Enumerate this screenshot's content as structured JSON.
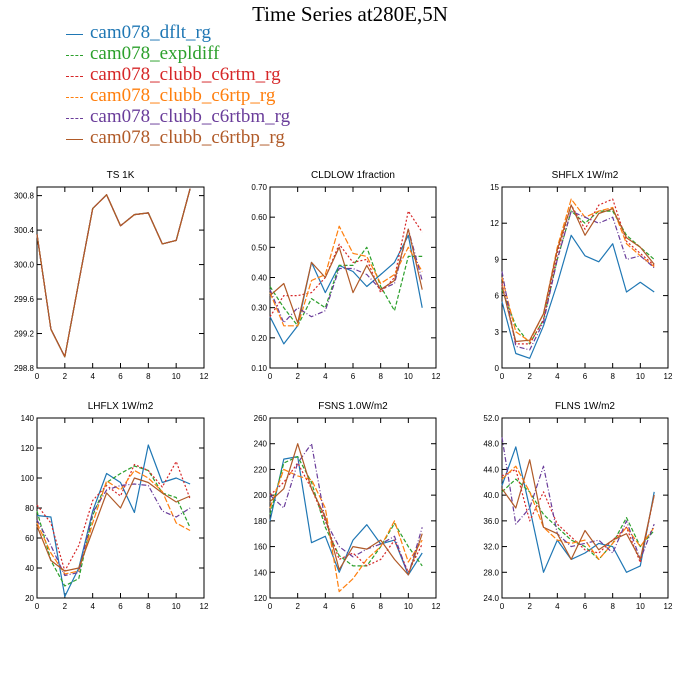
{
  "figure_title": "Time Series at280E,5N",
  "series_styles": [
    {
      "name": "cam078_dflt_rg",
      "color": "#1f77b4",
      "dash": ""
    },
    {
      "name": "cam078_expldiff",
      "color": "#2ca02c",
      "dash": "4,2"
    },
    {
      "name": "cam078_clubb_c6rtm_rg",
      "color": "#d62728",
      "dash": "2,2"
    },
    {
      "name": "cam078_clubb_c6rtp_rg",
      "color": "#ff7f0e",
      "dash": "6,2"
    },
    {
      "name": "cam078_clubb_c6rtbm_rg",
      "color": "#6a3d9a",
      "dash": "5,2,1,2"
    },
    {
      "name": "cam078_clubb_c6rtbp_rg",
      "color": "#b05a28",
      "dash": ""
    }
  ],
  "chart_data": [
    {
      "type": "line",
      "title": "TS   1K",
      "xlim": [
        0,
        12
      ],
      "xticks": [
        0,
        2,
        4,
        6,
        8,
        10,
        12
      ],
      "ylim": [
        298.8,
        300.9
      ],
      "yticks": [
        298.8,
        299.2,
        299.6,
        300.0,
        300.4,
        300.8
      ],
      "ytick_labels": [
        "298.8",
        "299.2",
        "299.6",
        "300.0",
        "300.4",
        "300.8"
      ],
      "x": [
        0,
        1,
        2,
        3,
        4,
        5,
        6,
        7,
        8,
        9,
        10,
        11
      ],
      "series": [
        {
          "values": [
            300.35,
            299.25,
            298.93,
            299.8,
            300.65,
            300.81,
            300.45,
            300.58,
            300.6,
            300.24,
            300.28,
            300.88
          ]
        },
        {
          "values": [
            300.35,
            299.25,
            298.93,
            299.8,
            300.65,
            300.81,
            300.45,
            300.58,
            300.6,
            300.24,
            300.28,
            300.88
          ]
        },
        {
          "values": [
            300.35,
            299.25,
            298.93,
            299.8,
            300.65,
            300.81,
            300.45,
            300.58,
            300.6,
            300.24,
            300.28,
            300.88
          ]
        },
        {
          "values": [
            300.35,
            299.25,
            298.93,
            299.8,
            300.65,
            300.81,
            300.45,
            300.58,
            300.6,
            300.24,
            300.28,
            300.88
          ]
        },
        {
          "values": [
            300.35,
            299.25,
            298.93,
            299.8,
            300.65,
            300.81,
            300.45,
            300.58,
            300.6,
            300.24,
            300.28,
            300.88
          ]
        },
        {
          "values": [
            300.35,
            299.25,
            298.93,
            299.8,
            300.65,
            300.81,
            300.45,
            300.58,
            300.6,
            300.24,
            300.28,
            300.88
          ]
        }
      ]
    },
    {
      "type": "line",
      "title": "CLDLOW   1fraction",
      "xlim": [
        0,
        12
      ],
      "xticks": [
        0,
        2,
        4,
        6,
        8,
        10,
        12
      ],
      "ylim": [
        0.1,
        0.7
      ],
      "yticks": [
        0.1,
        0.2,
        0.3,
        0.4,
        0.5,
        0.6,
        0.7
      ],
      "ytick_labels": [
        "0.10",
        "0.20",
        "0.30",
        "0.40",
        "0.50",
        "0.60",
        "0.70"
      ],
      "x": [
        0,
        1,
        2,
        3,
        4,
        5,
        6,
        7,
        8,
        9,
        10,
        11
      ],
      "series": [
        {
          "values": [
            0.27,
            0.18,
            0.24,
            0.45,
            0.35,
            0.44,
            0.42,
            0.37,
            0.41,
            0.45,
            0.54,
            0.3
          ]
        },
        {
          "values": [
            0.37,
            0.3,
            0.24,
            0.33,
            0.3,
            0.44,
            0.44,
            0.5,
            0.37,
            0.29,
            0.47,
            0.47
          ]
        },
        {
          "values": [
            0.27,
            0.34,
            0.34,
            0.35,
            0.4,
            0.51,
            0.45,
            0.46,
            0.35,
            0.4,
            0.62,
            0.55
          ]
        },
        {
          "values": [
            0.35,
            0.24,
            0.24,
            0.39,
            0.41,
            0.57,
            0.48,
            0.47,
            0.38,
            0.41,
            0.5,
            0.42
          ]
        },
        {
          "values": [
            0.36,
            0.25,
            0.3,
            0.27,
            0.29,
            0.43,
            0.43,
            0.41,
            0.36,
            0.38,
            0.56,
            0.39
          ]
        },
        {
          "values": [
            0.34,
            0.38,
            0.25,
            0.45,
            0.4,
            0.5,
            0.35,
            0.44,
            0.36,
            0.39,
            0.56,
            0.36
          ]
        }
      ]
    },
    {
      "type": "line",
      "title": "SHFLX   1W/m2",
      "xlim": [
        0,
        12
      ],
      "xticks": [
        0,
        2,
        4,
        6,
        8,
        10,
        12
      ],
      "ylim": [
        0,
        15
      ],
      "yticks": [
        0,
        3,
        6,
        9,
        12,
        15
      ],
      "ytick_labels": [
        "0",
        "3",
        "6",
        "9",
        "12",
        "15"
      ],
      "x": [
        0,
        1,
        2,
        3,
        4,
        5,
        6,
        7,
        8,
        9,
        10,
        11
      ],
      "series": [
        {
          "values": [
            5.5,
            1.2,
            0.8,
            3.5,
            7.0,
            11.0,
            9.3,
            8.8,
            10.3,
            6.3,
            7.1,
            6.3
          ]
        },
        {
          "values": [
            6.5,
            3.5,
            2.0,
            4.0,
            9.0,
            13.0,
            12.0,
            13.0,
            13.0,
            11.0,
            10.0,
            9.0
          ]
        },
        {
          "values": [
            7.0,
            2.0,
            2.0,
            4.0,
            9.5,
            13.5,
            11.5,
            13.5,
            14.0,
            10.5,
            9.5,
            8.5
          ]
        },
        {
          "values": [
            7.5,
            3.0,
            2.2,
            4.5,
            10.0,
            14.0,
            12.5,
            13.0,
            13.3,
            10.3,
            9.3,
            8.4
          ]
        },
        {
          "values": [
            8.0,
            1.8,
            1.5,
            3.8,
            9.0,
            13.0,
            12.5,
            12.0,
            12.5,
            9.0,
            9.3,
            8.3
          ]
        },
        {
          "values": [
            6.8,
            2.2,
            2.3,
            4.5,
            9.8,
            13.5,
            11.0,
            12.8,
            13.2,
            10.8,
            10.0,
            8.6
          ]
        }
      ]
    },
    {
      "type": "line",
      "title": "LHFLX   1W/m2",
      "xlim": [
        0,
        12
      ],
      "xticks": [
        0,
        2,
        4,
        6,
        8,
        10,
        12
      ],
      "ylim": [
        20,
        140
      ],
      "yticks": [
        20,
        40,
        60,
        80,
        100,
        120,
        140
      ],
      "ytick_labels": [
        "20",
        "40",
        "60",
        "80",
        "100",
        "120",
        "140"
      ],
      "x": [
        0,
        1,
        2,
        3,
        4,
        5,
        6,
        7,
        8,
        9,
        10,
        11
      ],
      "series": [
        {
          "values": [
            75,
            74,
            21,
            40,
            78,
            103,
            97,
            77,
            122,
            97,
            100,
            96
          ]
        },
        {
          "values": [
            78,
            45,
            28,
            33,
            75,
            97,
            103,
            108,
            105,
            90,
            87,
            67
          ]
        },
        {
          "values": [
            82,
            70,
            38,
            55,
            85,
            95,
            88,
            109,
            105,
            94,
            111,
            86
          ]
        },
        {
          "values": [
            70,
            50,
            36,
            38,
            70,
            98,
            92,
            105,
            100,
            91,
            70,
            65
          ]
        },
        {
          "values": [
            72,
            55,
            35,
            37,
            77,
            92,
            95,
            96,
            95,
            78,
            74,
            80
          ]
        },
        {
          "values": [
            68,
            45,
            38,
            40,
            65,
            90,
            80,
            100,
            97,
            90,
            84,
            88
          ]
        }
      ]
    },
    {
      "type": "line",
      "title": "FSNS   1.0W/m2",
      "xlim": [
        0,
        12
      ],
      "xticks": [
        0,
        2,
        4,
        6,
        8,
        10,
        12
      ],
      "ylim": [
        120,
        260
      ],
      "yticks": [
        120,
        140,
        160,
        180,
        200,
        220,
        240,
        260
      ],
      "ytick_labels": [
        "120",
        "140",
        "160",
        "180",
        "200",
        "220",
        "240",
        "260"
      ],
      "x": [
        0,
        1,
        2,
        3,
        4,
        5,
        6,
        7,
        8,
        9,
        10,
        11
      ],
      "series": [
        {
          "values": [
            180,
            228,
            230,
            163,
            168,
            140,
            165,
            177,
            162,
            165,
            138,
            155
          ]
        },
        {
          "values": [
            185,
            225,
            230,
            210,
            175,
            153,
            145,
            145,
            160,
            178,
            160,
            145
          ]
        },
        {
          "values": [
            200,
            210,
            225,
            205,
            180,
            150,
            155,
            145,
            150,
            165,
            140,
            162
          ]
        },
        {
          "values": [
            190,
            220,
            215,
            212,
            190,
            125,
            135,
            150,
            160,
            180,
            148,
            165
          ]
        },
        {
          "values": [
            200,
            190,
            225,
            240,
            180,
            160,
            152,
            158,
            162,
            168,
            138,
            175
          ]
        },
        {
          "values": [
            195,
            205,
            240,
            205,
            183,
            142,
            160,
            158,
            165,
            150,
            138,
            170
          ]
        }
      ]
    },
    {
      "type": "line",
      "title": "FLNS   1W/m2",
      "xlim": [
        0,
        12
      ],
      "xticks": [
        0,
        2,
        4,
        6,
        8,
        10,
        12
      ],
      "ylim": [
        24,
        52
      ],
      "yticks": [
        24,
        28,
        32,
        36,
        40,
        44,
        48,
        52
      ],
      "ytick_labels": [
        "24.0",
        "28.0",
        "32.0",
        "36.0",
        "40.0",
        "44.0",
        "48.0",
        "52.0"
      ],
      "x": [
        0,
        1,
        2,
        3,
        4,
        5,
        6,
        7,
        8,
        9,
        10,
        11
      ],
      "series": [
        {
          "values": [
            41.5,
            47.5,
            38.0,
            28.0,
            33.0,
            30.0,
            31.0,
            32.5,
            32.0,
            28.0,
            29.0,
            40.5
          ]
        },
        {
          "values": [
            40.5,
            42.5,
            40.5,
            37.0,
            35.0,
            33.0,
            32.0,
            30.0,
            32.5,
            36.5,
            32.0,
            34.5
          ]
        },
        {
          "values": [
            43.0,
            44.0,
            36.0,
            40.5,
            35.5,
            33.5,
            31.5,
            31.0,
            33.0,
            35.0,
            29.5,
            40.0
          ]
        },
        {
          "values": [
            42.5,
            44.5,
            40.5,
            35.0,
            33.0,
            32.5,
            33.0,
            30.0,
            32.5,
            35.0,
            32.0,
            35.0
          ]
        },
        {
          "values": [
            49.0,
            35.5,
            38.0,
            44.5,
            34.0,
            32.0,
            32.5,
            33.0,
            31.0,
            36.0,
            30.0,
            35.5
          ]
        },
        {
          "values": [
            41.0,
            38.0,
            45.5,
            35.0,
            34.0,
            30.0,
            34.5,
            31.5,
            33.0,
            34.0,
            30.0,
            40.0
          ]
        }
      ]
    }
  ]
}
